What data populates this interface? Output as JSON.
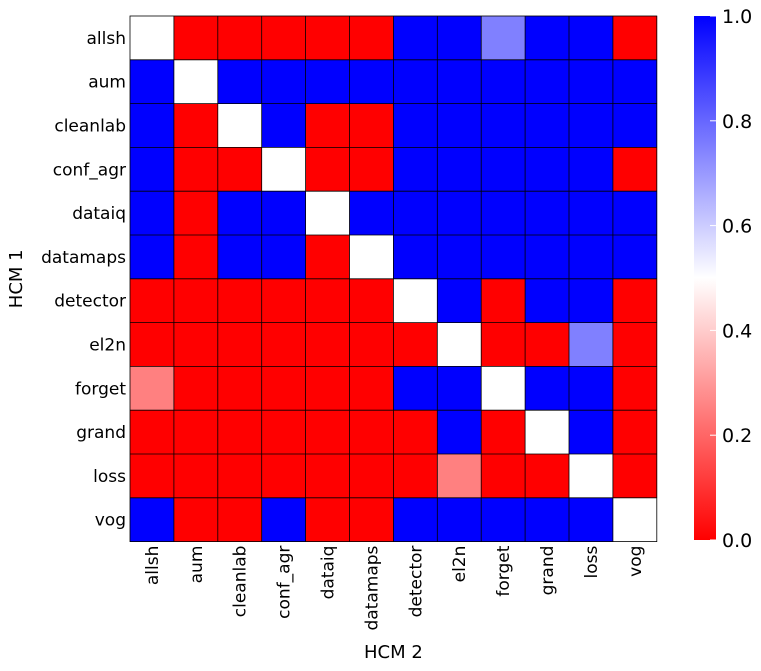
{
  "chart_data": {
    "type": "heatmap",
    "title": "",
    "xlabel": "HCM 2",
    "ylabel": "HCM 1",
    "x_categories": [
      "allsh",
      "aum",
      "cleanlab",
      "conf_agr",
      "dataiq",
      "datamaps",
      "detector",
      "el2n",
      "forget",
      "grand",
      "loss",
      "vog"
    ],
    "y_categories": [
      "allsh",
      "aum",
      "cleanlab",
      "conf_agr",
      "dataiq",
      "datamaps",
      "detector",
      "el2n",
      "forget",
      "grand",
      "loss",
      "vog"
    ],
    "values": [
      [
        0.5,
        0.0,
        0.0,
        0.0,
        0.0,
        0.0,
        1.0,
        1.0,
        0.75,
        1.0,
        1.0,
        0.0
      ],
      [
        1.0,
        0.5,
        1.0,
        1.0,
        1.0,
        1.0,
        1.0,
        1.0,
        1.0,
        1.0,
        1.0,
        1.0
      ],
      [
        1.0,
        0.0,
        0.5,
        1.0,
        0.0,
        0.0,
        1.0,
        1.0,
        1.0,
        1.0,
        1.0,
        1.0
      ],
      [
        1.0,
        0.0,
        0.0,
        0.5,
        0.0,
        0.0,
        1.0,
        1.0,
        1.0,
        1.0,
        1.0,
        0.0
      ],
      [
        1.0,
        0.0,
        1.0,
        1.0,
        0.5,
        1.0,
        1.0,
        1.0,
        1.0,
        1.0,
        1.0,
        1.0
      ],
      [
        1.0,
        0.0,
        1.0,
        1.0,
        0.0,
        0.5,
        1.0,
        1.0,
        1.0,
        1.0,
        1.0,
        1.0
      ],
      [
        0.0,
        0.0,
        0.0,
        0.0,
        0.0,
        0.0,
        0.5,
        1.0,
        0.0,
        1.0,
        1.0,
        0.0
      ],
      [
        0.0,
        0.0,
        0.0,
        0.0,
        0.0,
        0.0,
        0.0,
        0.5,
        0.0,
        0.0,
        0.75,
        0.0
      ],
      [
        0.25,
        0.0,
        0.0,
        0.0,
        0.0,
        0.0,
        1.0,
        1.0,
        0.5,
        1.0,
        1.0,
        0.0
      ],
      [
        0.0,
        0.0,
        0.0,
        0.0,
        0.0,
        0.0,
        0.0,
        1.0,
        0.0,
        0.5,
        1.0,
        0.0
      ],
      [
        0.0,
        0.0,
        0.0,
        0.0,
        0.0,
        0.0,
        0.0,
        0.25,
        0.0,
        0.0,
        0.5,
        0.0
      ],
      [
        1.0,
        0.0,
        0.0,
        1.0,
        0.0,
        0.0,
        1.0,
        1.0,
        1.0,
        1.0,
        1.0,
        0.5
      ]
    ],
    "colormap": "bwr_r",
    "color_low": "#ff0000",
    "color_mid": "#ffffff",
    "color_high": "#0000ff",
    "vmin": 0.0,
    "vmax": 1.0,
    "colorbar_ticks": [
      0.0,
      0.2,
      0.4,
      0.6,
      0.8,
      1.0
    ],
    "colorbar_tick_labels": [
      "0.0",
      "0.2",
      "0.4",
      "0.6",
      "0.8",
      "1.0"
    ],
    "grid": true,
    "legend": "colorbar-right"
  }
}
